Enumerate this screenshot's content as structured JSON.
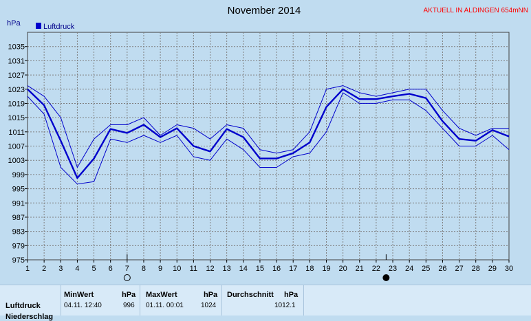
{
  "header": {
    "title": "November 2014",
    "station": "AKTUELL IN ALDINGEN 654mNN",
    "unit": "hPa",
    "legend": "Luftdruck"
  },
  "colors": {
    "main": "#0000cc",
    "band": "#0000cc",
    "grid": "#7f7f7f",
    "plot_bg": "#c0dcf0"
  },
  "moon_markers": [
    {
      "day": 7,
      "phase": "full-moon-icon"
    },
    {
      "day": 22.6,
      "phase": "new-moon-icon"
    }
  ],
  "stats": {
    "row_labels": [
      "Luftdruck",
      "Niederschlag"
    ],
    "min_header": "MinWert",
    "min_unit": "hPa",
    "min_time": "04.11.  12:40",
    "min_value": "996",
    "max_header": "MaxWert",
    "max_unit": "hPa",
    "max_time": "01.11.  00:01",
    "max_value": "1024",
    "avg_header": "Durchschnitt",
    "avg_unit": "hPa",
    "avg_value": "1012.1"
  },
  "chart_data": {
    "type": "line",
    "title": "November 2014",
    "ylabel": "hPa",
    "xlim": [
      1,
      30
    ],
    "ylim": [
      975,
      1039
    ],
    "x_ticks": [
      1,
      2,
      3,
      4,
      5,
      6,
      7,
      8,
      9,
      10,
      11,
      12,
      13,
      14,
      15,
      16,
      17,
      18,
      19,
      20,
      21,
      22,
      23,
      24,
      25,
      26,
      27,
      28,
      29,
      30
    ],
    "y_ticks": [
      975,
      979,
      983,
      987,
      991,
      995,
      999,
      1003,
      1007,
      1011,
      1015,
      1019,
      1023,
      1027,
      1031,
      1035
    ],
    "grid": true,
    "legend_position": "top-left",
    "series": [
      {
        "name": "Luftdruck",
        "role": "mean",
        "x": [
          1,
          2,
          3,
          4,
          5,
          6,
          7,
          8,
          9,
          10,
          11,
          12,
          13,
          14,
          15,
          16,
          17,
          18,
          19,
          20,
          21,
          22,
          23,
          24,
          25,
          26,
          27,
          28,
          29,
          30
        ],
        "values": [
          1023,
          1018.5,
          1008.5,
          998,
          1003.5,
          1011.8,
          1010.7,
          1013,
          1009.5,
          1012,
          1007,
          1005.5,
          1011.8,
          1009.5,
          1003.5,
          1003.5,
          1005,
          1008,
          1018,
          1023,
          1020.2,
          1020.2,
          1021,
          1021.7,
          1020.5,
          1014,
          1009,
          1008.5,
          1011.5,
          1009.7
        ]
      },
      {
        "role": "max",
        "x": [
          1,
          2,
          3,
          4,
          5,
          6,
          7,
          8,
          9,
          10,
          11,
          12,
          13,
          14,
          15,
          16,
          17,
          18,
          19,
          20,
          21,
          22,
          23,
          24,
          25,
          26,
          27,
          28,
          29,
          30
        ],
        "values": [
          1024,
          1021,
          1015,
          1001,
          1009,
          1013,
          1013,
          1015,
          1010,
          1013,
          1012,
          1009,
          1013,
          1012,
          1006,
          1005,
          1006,
          1011,
          1023,
          1024,
          1022,
          1021,
          1022,
          1023,
          1023,
          1017,
          1012,
          1010,
          1012,
          1012
        ]
      },
      {
        "role": "min",
        "x": [
          1,
          2,
          3,
          4,
          5,
          6,
          7,
          8,
          9,
          10,
          11,
          12,
          13,
          14,
          15,
          16,
          17,
          18,
          19,
          20,
          21,
          22,
          23,
          24,
          25,
          26,
          27,
          28,
          29,
          30
        ],
        "values": [
          1021,
          1016,
          1001,
          996.3,
          997,
          1009,
          1008,
          1010,
          1008,
          1010,
          1004,
          1003,
          1009,
          1006,
          1001,
          1001,
          1004,
          1005,
          1011,
          1022,
          1019,
          1019,
          1020,
          1020,
          1017,
          1012,
          1007,
          1007,
          1010,
          1006
        ]
      }
    ]
  }
}
